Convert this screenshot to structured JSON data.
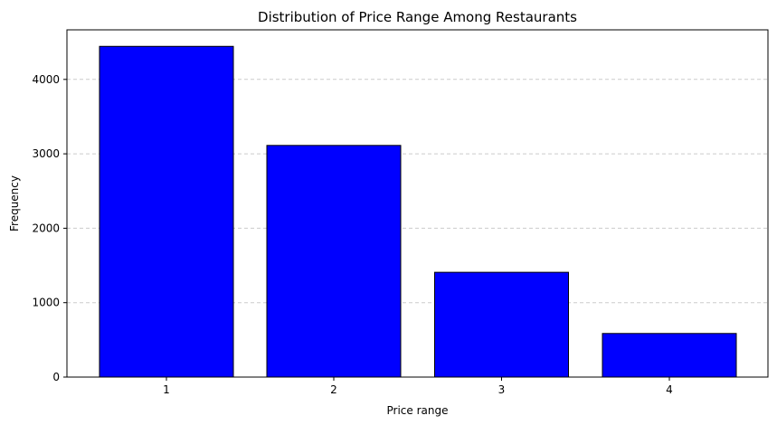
{
  "chart_data": {
    "type": "bar",
    "title": "Distribution of Price Range Among Restaurants",
    "xlabel": "Price range",
    "ylabel": "Frequency",
    "categories": [
      "1",
      "2",
      "3",
      "4"
    ],
    "values": [
      4444,
      3113,
      1408,
      586
    ],
    "ylim": [
      0,
      4666
    ],
    "yticks": [
      0,
      1000,
      2000,
      3000,
      4000
    ],
    "grid": "y-dashed",
    "bar_color": "#0000ff",
    "edge_color": "#000000",
    "grid_color": "#cccccc"
  }
}
